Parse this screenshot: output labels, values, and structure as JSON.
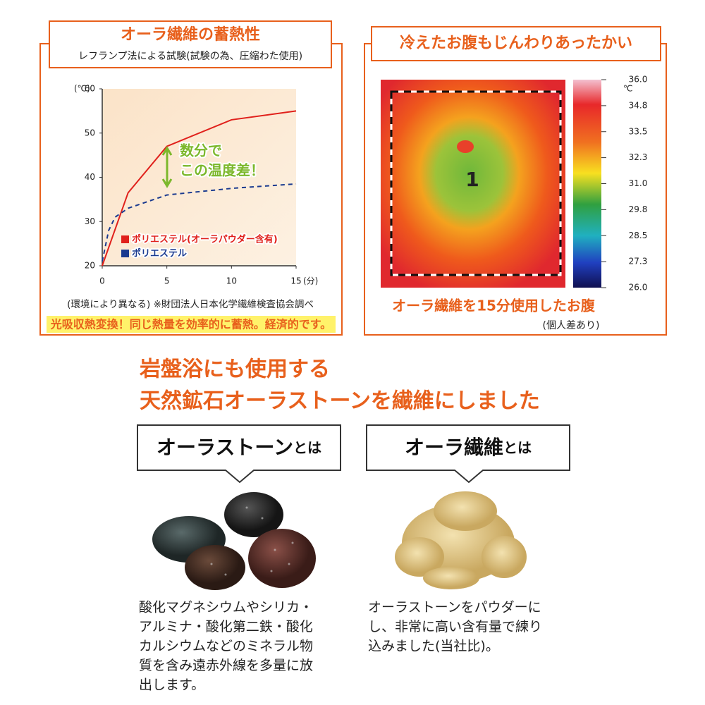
{
  "left_panel": {
    "title": "オーラ繊維の蓄熱性",
    "subtitle": "レフランプ法による試験(試験の為、圧縮わた使用)",
    "footnote": "(環境により異なる) ※財団法人日本化学繊維検査協会調べ",
    "highlight": "光吸収熱変換！同じ熱量を効率的に蓄熱。経済的です。"
  },
  "chart_data": {
    "type": "line",
    "y_label": "(℃)",
    "x_label": "(分)",
    "xlim": [
      0,
      15
    ],
    "ylim": [
      20,
      60
    ],
    "xticks": [
      0,
      5,
      10,
      15
    ],
    "yticks": [
      20,
      30,
      40,
      50,
      60
    ],
    "annotation": [
      "数分で",
      "この温度差！"
    ],
    "series": [
      {
        "name": "ポリエステル(オーラパウダー含有)",
        "color": "#e0201b",
        "line_style": "solid",
        "x": [
          0,
          2,
          5,
          10,
          15
        ],
        "values": [
          20,
          36.5,
          47,
          53,
          55
        ]
      },
      {
        "name": "ポリエステル",
        "color": "#1a3a8f",
        "line_style": "dashed",
        "x": [
          0,
          0.5,
          1,
          2,
          5,
          10,
          15
        ],
        "values": [
          21,
          28,
          31,
          33,
          36,
          37.5,
          38.5
        ]
      }
    ]
  },
  "right_panel": {
    "title": "冷えたお腹もじんわりあったかい",
    "scale_unit": "℃",
    "scale_labels": [
      "36.0",
      "34.8",
      "33.5",
      "32.3",
      "31.0",
      "29.8",
      "28.5",
      "27.3",
      "26.0"
    ],
    "region_label": "1",
    "caption": "オーラ繊維を15分使用したお腹",
    "note": "(個人差あり)"
  },
  "headline": [
    "岩盤浴にも使用する",
    "天然鉱石オーラストーンを繊維にしました"
  ],
  "cards": [
    {
      "title": "オーラストーン",
      "suffix": "とは",
      "description": [
        "酸化マグネシウムやシリカ・",
        "アルミナ・酸化第二鉄・酸化",
        "カルシウムなどのミネラル物",
        "質を含み遠赤外線を多量に放",
        "出します。"
      ]
    },
    {
      "title": "オーラ繊維",
      "suffix": "とは",
      "description": [
        "オーラストーンをパウダーに",
        "し、非常に高い含有量で練り",
        "込みました(当社比)。"
      ]
    }
  ]
}
